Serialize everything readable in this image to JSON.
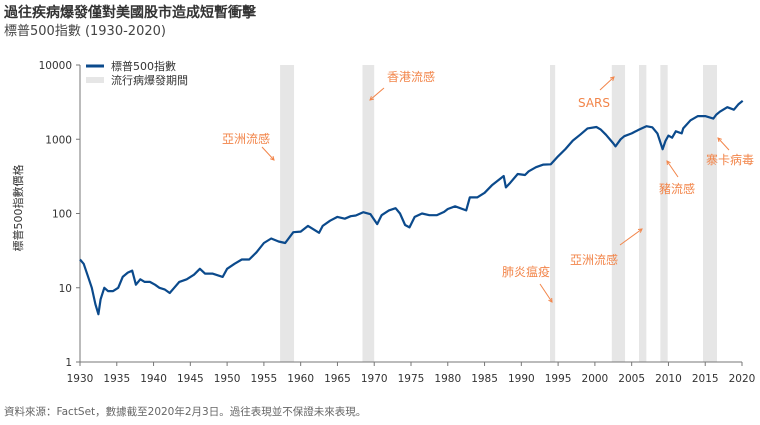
{
  "header": {
    "title": "過往疾病爆發僅對美國股市造成短暫衝擊",
    "subtitle": "標普500指數 (1930-2020)"
  },
  "footer": {
    "source": "資料來源：FactSet，數據截至2020年2月3日。過往表現並不保證未來表現。"
  },
  "colors": {
    "line": "#0b4a8c",
    "shade": "#e6e6e6",
    "annotation": "#f2854a",
    "axis": "#777777"
  },
  "chart_data": {
    "type": "line",
    "title": "過往疾病爆發僅對美國股市造成短暫衝擊",
    "subtitle": "標普500指數 (1930-2020)",
    "ylabel": "標普500指數價格",
    "xlabel": "",
    "y_scale": "log",
    "xlim": [
      1930,
      2020
    ],
    "ylim": [
      1,
      10000
    ],
    "x_ticks": [
      1930,
      1935,
      1940,
      1945,
      1950,
      1955,
      1960,
      1965,
      1970,
      1975,
      1980,
      1985,
      1990,
      1995,
      2000,
      2005,
      2010,
      2015,
      2020
    ],
    "y_ticks": [
      1,
      10,
      100,
      1000,
      10000
    ],
    "y_tick_labels": [
      "1",
      "10",
      "100",
      "1000",
      "10000"
    ],
    "legend": {
      "position": "top-left",
      "items": [
        {
          "label": "標普500指數",
          "kind": "line"
        },
        {
          "label": "流行病爆發期間",
          "kind": "band"
        }
      ]
    },
    "series": [
      {
        "name": "標普500指數",
        "x": [
          1930,
          1930.5,
          1931,
          1931.6,
          1932.1,
          1932.5,
          1932.8,
          1933.3,
          1933.8,
          1934.5,
          1935.2,
          1935.8,
          1936.5,
          1937.1,
          1937.6,
          1938.2,
          1938.8,
          1939.5,
          1940.2,
          1940.8,
          1941.5,
          1942.2,
          1942.8,
          1943.5,
          1944.5,
          1945.5,
          1946.3,
          1947,
          1948,
          1949.4,
          1950,
          1951,
          1952,
          1953,
          1954,
          1955,
          1956,
          1957,
          1957.9,
          1959,
          1960,
          1961,
          1962.5,
          1963,
          1964,
          1965,
          1966,
          1966.8,
          1967.5,
          1968.5,
          1969.5,
          1970.4,
          1971,
          1972,
          1972.9,
          1973.5,
          1974.2,
          1974.8,
          1975.5,
          1976.5,
          1977.5,
          1978.5,
          1979.5,
          1980,
          1981,
          1982.5,
          1983,
          1984,
          1985,
          1986,
          1987.6,
          1987.9,
          1988.5,
          1989.5,
          1990.5,
          1991,
          1992,
          1993,
          1994,
          1995,
          1996,
          1997,
          1998,
          1999,
          2000.2,
          2000.8,
          2001.5,
          2002.5,
          2002.8,
          2003.5,
          2004,
          2005,
          2006,
          2007,
          2007.8,
          2008.5,
          2009.2,
          2009.6,
          2010,
          2010.5,
          2011,
          2011.8,
          2012,
          2013,
          2014,
          2015,
          2016.1,
          2016.5,
          2017,
          2018,
          2018.9,
          2019.5,
          2020.1
        ],
        "values": [
          24,
          21,
          15,
          10,
          6,
          4.4,
          7,
          10,
          9,
          9,
          10,
          14,
          16,
          17,
          11,
          13,
          12,
          12,
          11,
          10,
          9.5,
          8.5,
          10,
          12,
          13,
          15,
          18,
          15.5,
          15.5,
          14,
          18,
          21,
          24,
          24,
          30,
          40,
          46,
          42,
          40,
          56,
          57,
          68,
          55,
          68,
          80,
          90,
          85,
          92,
          94,
          104,
          98,
          72,
          95,
          110,
          118,
          100,
          70,
          65,
          90,
          100,
          95,
          95,
          105,
          115,
          125,
          110,
          165,
          165,
          190,
          240,
          320,
          225,
          260,
          340,
          330,
          370,
          420,
          455,
          460,
          590,
          740,
          960,
          1150,
          1400,
          1460,
          1350,
          1150,
          880,
          800,
          1000,
          1100,
          1200,
          1350,
          1500,
          1450,
          1200,
          735,
          950,
          1120,
          1050,
          1280,
          1200,
          1400,
          1800,
          2050,
          2050,
          1900,
          2150,
          2350,
          2700,
          2500,
          2950,
          3300
        ]
      }
    ],
    "bands": [
      {
        "start": 1957.2,
        "end": 1959.1
      },
      {
        "start": 1968.4,
        "end": 1970.0
      },
      {
        "start": 1993.9,
        "end": 1994.6
      },
      {
        "start": 2002.3,
        "end": 2004.1
      },
      {
        "start": 2006.0,
        "end": 2007.0
      },
      {
        "start": 2008.9,
        "end": 2009.9
      },
      {
        "start": 2014.7,
        "end": 2016.6
      }
    ],
    "annotations": [
      {
        "text": "亞洲流感"
      },
      {
        "text": "香港流感"
      },
      {
        "text": "肺炎瘟疫"
      },
      {
        "text": "SARS"
      },
      {
        "text": "亞洲流感"
      },
      {
        "text": "豬流感"
      },
      {
        "text": "寨卡病毒"
      }
    ]
  }
}
